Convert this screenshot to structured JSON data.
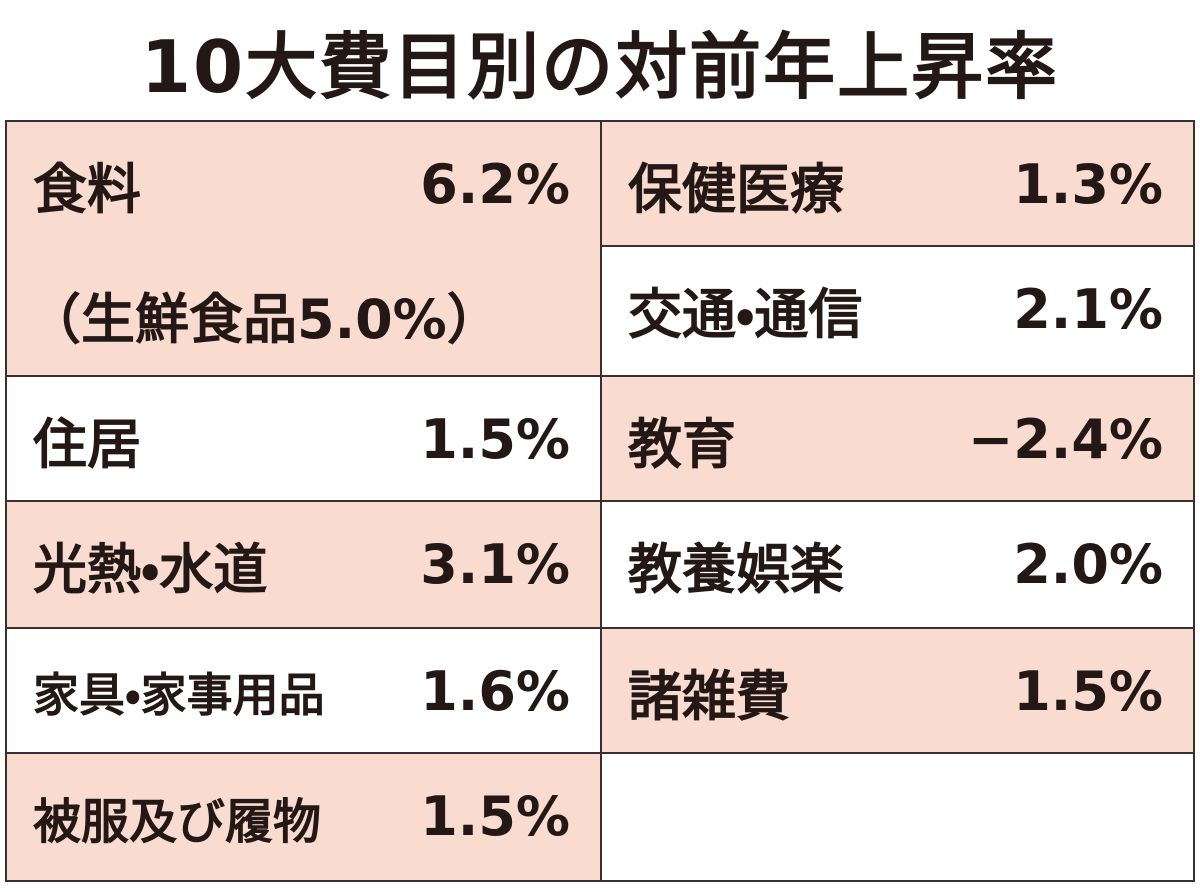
{
  "title": "10大費目別の対前年上昇率",
  "table": {
    "left": [
      {
        "label": "食料",
        "value": "6.2%",
        "note": "（生鮮食品5.0%）"
      },
      {
        "label": "住居",
        "value": "1.5%"
      },
      {
        "label": "光熱・水道",
        "value": "3.1%"
      },
      {
        "label": "家具・家事用品",
        "value": "1.6%"
      },
      {
        "label": "被服及び履物",
        "value": "1.5%"
      }
    ],
    "right": [
      {
        "label": "保健医療",
        "value": "1.3%"
      },
      {
        "label": "交通・通信",
        "value": "2.1%"
      },
      {
        "label": "教育",
        "value": "−2.4%"
      },
      {
        "label": "教養娯楽",
        "value": "2.0%"
      },
      {
        "label": "諸雑費",
        "value": "1.5%"
      }
    ]
  }
}
